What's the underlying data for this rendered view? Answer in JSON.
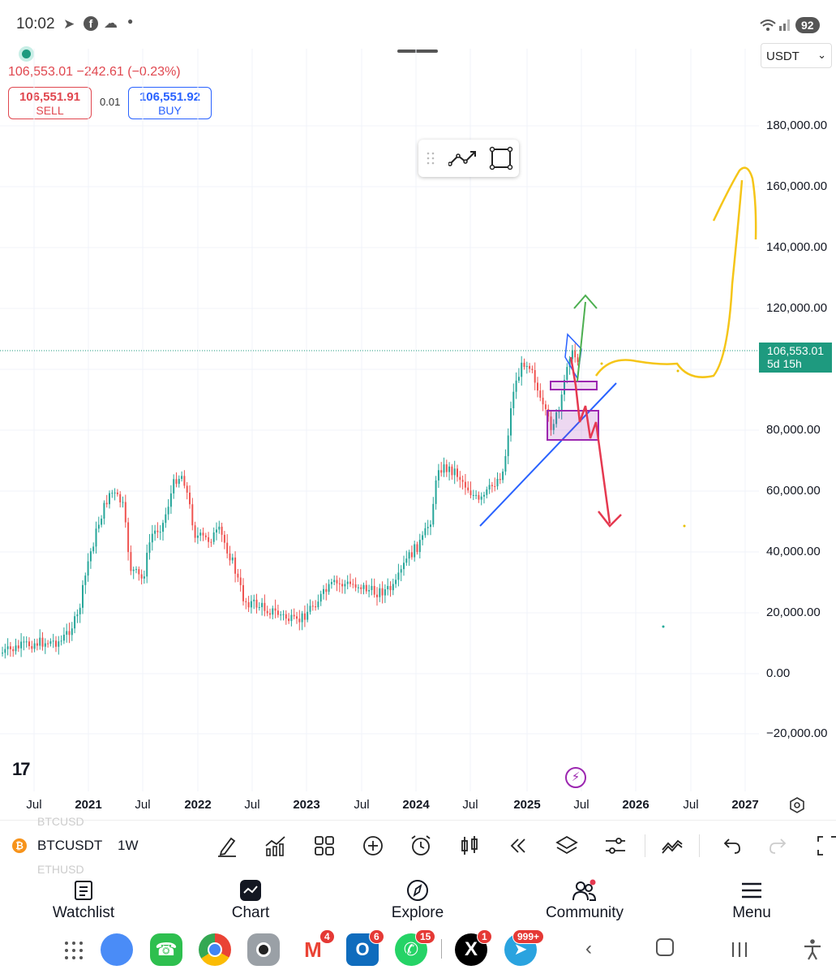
{
  "status_bar": {
    "time": "10:02",
    "battery": "92",
    "icons": [
      "telegram-icon",
      "facebook-icon",
      "cloud-icon",
      "dot-icon",
      "wifi-icon",
      "signal-icon"
    ]
  },
  "header": {
    "price_line": "106,553.01  −242.61 (−0.23%)",
    "sell_price": "106,551.91",
    "sell_label": "SELL",
    "spread": "0.01",
    "buy_price": "106,551.92",
    "buy_label": "BUY",
    "currency": "USDT",
    "colors": {
      "down": "#e0474f",
      "buy": "#2962ff",
      "up": "#1e9a7f"
    }
  },
  "chart": {
    "current_price": "106,553.01",
    "countdown": "5d 15h",
    "y_axis_labels": [
      "180,000.00",
      "160,000.00",
      "140,000.00",
      "120,000.00",
      "80,000.00",
      "60,000.00",
      "40,000.00",
      "20,000.00",
      "0.00",
      "−20,000.00"
    ],
    "x_axis_labels": [
      {
        "text": "Jul",
        "year": false
      },
      {
        "text": "2021",
        "year": true
      },
      {
        "text": "Jul",
        "year": false
      },
      {
        "text": "2022",
        "year": true
      },
      {
        "text": "Jul",
        "year": false
      },
      {
        "text": "2023",
        "year": true
      },
      {
        "text": "Jul",
        "year": false
      },
      {
        "text": "2024",
        "year": true
      },
      {
        "text": "Jul",
        "year": false
      },
      {
        "text": "2025",
        "year": true
      },
      {
        "text": "Jul",
        "year": false
      },
      {
        "text": "2026",
        "year": true
      },
      {
        "text": "Jul",
        "year": false
      },
      {
        "text": "2027",
        "year": true
      }
    ],
    "logo": "17",
    "candle_colors": {
      "up": "#26a69a",
      "down": "#ef5350"
    },
    "drawing_colors": {
      "trendline": "#2962ff",
      "up_arrow": "#4caf50",
      "down_arrow": "#e53950",
      "projection": "#f5c518",
      "zone": "#9c27b0"
    }
  },
  "chart_toolbar": {
    "symbol": "BTCUSDT",
    "symbol_prev": "BTCUSD",
    "symbol_next": "ETHUSD",
    "interval": "1W"
  },
  "bottom_nav": {
    "items": [
      {
        "label": "Watchlist",
        "icon": "watchlist-icon"
      },
      {
        "label": "Chart",
        "icon": "chart-icon"
      },
      {
        "label": "Explore",
        "icon": "compass-icon"
      },
      {
        "label": "Community",
        "icon": "community-icon"
      },
      {
        "label": "Menu",
        "icon": "menu-icon"
      }
    ]
  },
  "dock": {
    "gmail_badge": "4",
    "outlook_badge": "6",
    "whatsapp_badge": "15",
    "x_badge": "1",
    "telegram_badge": "999+"
  }
}
